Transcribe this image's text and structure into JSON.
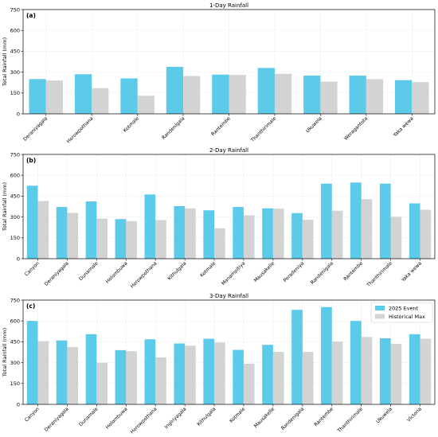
{
  "colors": {
    "event": "#5bcbe9",
    "historical": "#d3d3d3",
    "grid": "#dcdcdc",
    "axis": "#000000"
  },
  "chart_data": [
    {
      "type": "bar",
      "title": "1-Day Rainfall",
      "panel_label": "(a)",
      "ylabel": "Total Rainfall (mm)",
      "ylim": [
        0,
        750
      ],
      "yticks": [
        0,
        150,
        300,
        450,
        600,
        750
      ],
      "grid": true,
      "categories": [
        "Deraniyagala",
        "Horowpothana",
        "Kotmale",
        "Randenigala",
        "Rantembe",
        "Thanthirimale",
        "Ukuwela",
        "Weragantota",
        "Yaka wewa"
      ],
      "series": [
        {
          "name": "2025 Event",
          "values": [
            250,
            285,
            255,
            338,
            282,
            330,
            275,
            275,
            242
          ]
        },
        {
          "name": "Historical Max",
          "values": [
            240,
            185,
            130,
            272,
            280,
            288,
            232,
            250,
            228
          ]
        }
      ]
    },
    {
      "type": "bar",
      "title": "2-Day Rainfall",
      "panel_label": "(b)",
      "ylabel": "Total Rainfall (mm)",
      "ylim": [
        0,
        750
      ],
      "yticks": [
        0,
        150,
        300,
        450,
        600,
        750
      ],
      "grid": true,
      "categories": [
        "Canyon",
        "Deraniyagala",
        "Dunamale",
        "Holombuwa",
        "Horowpothana",
        "Kithulgala",
        "Kotmale",
        "Manampitiya",
        "Mausakelle",
        "Peradeniya",
        "Randenigala",
        "Rantembe",
        "Thanthirimale",
        "Yaka wewa"
      ],
      "series": [
        {
          "name": "2025 Event",
          "values": [
            525,
            372,
            412,
            285,
            462,
            378,
            348,
            372,
            362,
            328,
            540,
            548,
            540,
            398
          ]
        },
        {
          "name": "Historical Max",
          "values": [
            415,
            330,
            288,
            270,
            278,
            362,
            218,
            312,
            360,
            280,
            345,
            428,
            302,
            352
          ]
        }
      ]
    },
    {
      "type": "bar",
      "title": "3-Day Rainfall",
      "panel_label": "(c)",
      "ylabel": "Total Rainfall (mm)",
      "ylim": [
        0,
        750
      ],
      "yticks": [
        0,
        150,
        300,
        450,
        600,
        750
      ],
      "grid": true,
      "legend_position": "top-right",
      "categories": [
        "Canyon",
        "Deraniyagala",
        "Dunamale",
        "Holombuwa",
        "Horowpothana",
        "Ingiriyagala",
        "Kithulgala",
        "Kotmale",
        "Mausakelle",
        "Randenigala",
        "Rantembe",
        "Thanthirimale",
        "Ukuwela",
        "Victoria"
      ],
      "series": [
        {
          "name": "2025 Event",
          "values": [
            600,
            460,
            505,
            390,
            468,
            438,
            472,
            392,
            428,
            680,
            700,
            600,
            475,
            505
          ]
        },
        {
          "name": "Historical Max",
          "values": [
            455,
            412,
            300,
            382,
            338,
            422,
            445,
            292,
            378,
            378,
            452,
            485,
            435,
            472
          ]
        }
      ]
    }
  ]
}
